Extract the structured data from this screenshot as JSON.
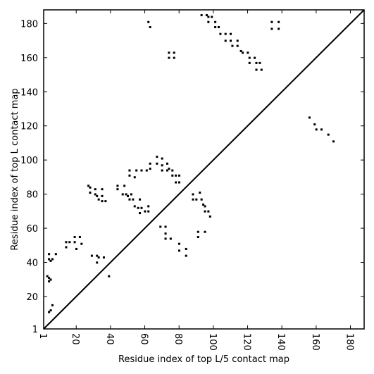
{
  "chart_data": {
    "type": "scatter",
    "title": "",
    "xlabel": "Residue index of top L/5 contact map",
    "ylabel": "Residue index of top L contact map",
    "xlim": [
      1,
      188
    ],
    "ylim": [
      1,
      188
    ],
    "xticks": [
      1,
      20,
      40,
      60,
      80,
      100,
      120,
      140,
      160,
      180
    ],
    "yticks": [
      1,
      20,
      40,
      60,
      80,
      100,
      120,
      140,
      160,
      180
    ],
    "grid": false,
    "diagonal": {
      "from": [
        1,
        1
      ],
      "to": [
        188,
        188
      ]
    },
    "marker_color": "#000000",
    "series": [
      {
        "values": [
          [
            4,
            45
          ],
          [
            4,
            42
          ],
          [
            5,
            41
          ],
          [
            6,
            42
          ],
          [
            8,
            45
          ],
          [
            3,
            32
          ],
          [
            4,
            31
          ],
          [
            4,
            29
          ],
          [
            5,
            30
          ],
          [
            6,
            15
          ],
          [
            5,
            12
          ],
          [
            4,
            11
          ],
          [
            14,
            52
          ],
          [
            16,
            52
          ],
          [
            14,
            49
          ],
          [
            19,
            55
          ],
          [
            19,
            52
          ],
          [
            20,
            48
          ],
          [
            22,
            55
          ],
          [
            23,
            51
          ],
          [
            27,
            85
          ],
          [
            28,
            84
          ],
          [
            28,
            81
          ],
          [
            31,
            83
          ],
          [
            31,
            80
          ],
          [
            32,
            79
          ],
          [
            33,
            77
          ],
          [
            35,
            83
          ],
          [
            35,
            79
          ],
          [
            35,
            76
          ],
          [
            37,
            76
          ],
          [
            29,
            44
          ],
          [
            32,
            44
          ],
          [
            33,
            43
          ],
          [
            32,
            40
          ],
          [
            36,
            43
          ],
          [
            39,
            32
          ],
          [
            44,
            85
          ],
          [
            44,
            83
          ],
          [
            48,
            85
          ],
          [
            49,
            80
          ],
          [
            47,
            80
          ],
          [
            50,
            79
          ],
          [
            51,
            77
          ],
          [
            53,
            77
          ],
          [
            52,
            80
          ],
          [
            54,
            73
          ],
          [
            57,
            77
          ],
          [
            56,
            72
          ],
          [
            58,
            72
          ],
          [
            57,
            69
          ],
          [
            60,
            70
          ],
          [
            62,
            70
          ],
          [
            62,
            73
          ],
          [
            51,
            94
          ],
          [
            51,
            91
          ],
          [
            54,
            90
          ],
          [
            55,
            94
          ],
          [
            58,
            94
          ],
          [
            61,
            94
          ],
          [
            63,
            98
          ],
          [
            63,
            95
          ],
          [
            67,
            102
          ],
          [
            67,
            98
          ],
          [
            70,
            101
          ],
          [
            70,
            97
          ],
          [
            70,
            94
          ],
          [
            73,
            98
          ],
          [
            73,
            94
          ],
          [
            74,
            95
          ],
          [
            76,
            94
          ],
          [
            76,
            91
          ],
          [
            78,
            91
          ],
          [
            78,
            87
          ],
          [
            80,
            91
          ],
          [
            80,
            87
          ],
          [
            69,
            61
          ],
          [
            72,
            61
          ],
          [
            72,
            57
          ],
          [
            72,
            54
          ],
          [
            75,
            54
          ],
          [
            80,
            51
          ],
          [
            80,
            47
          ],
          [
            84,
            48
          ],
          [
            84,
            44
          ],
          [
            88,
            80
          ],
          [
            90,
            77
          ],
          [
            88,
            77
          ],
          [
            92,
            81
          ],
          [
            93,
            77
          ],
          [
            94,
            74
          ],
          [
            95,
            73
          ],
          [
            95,
            70
          ],
          [
            97,
            70
          ],
          [
            98,
            67
          ],
          [
            91,
            58
          ],
          [
            91,
            55
          ],
          [
            95,
            58
          ],
          [
            62,
            181
          ],
          [
            63,
            178
          ],
          [
            74,
            163
          ],
          [
            74,
            160
          ],
          [
            77,
            163
          ],
          [
            77,
            160
          ],
          [
            93,
            185
          ],
          [
            96,
            185
          ],
          [
            97,
            184
          ],
          [
            97,
            181
          ],
          [
            99,
            184
          ],
          [
            101,
            181
          ],
          [
            101,
            178
          ],
          [
            103,
            178
          ],
          [
            104,
            174
          ],
          [
            107,
            174
          ],
          [
            107,
            170
          ],
          [
            110,
            174
          ],
          [
            110,
            170
          ],
          [
            111,
            167
          ],
          [
            114,
            170
          ],
          [
            114,
            167
          ],
          [
            116,
            164
          ],
          [
            117,
            163
          ],
          [
            120,
            163
          ],
          [
            121,
            160
          ],
          [
            121,
            157
          ],
          [
            124,
            160
          ],
          [
            125,
            157
          ],
          [
            127,
            157
          ],
          [
            128,
            153
          ],
          [
            125,
            153
          ],
          [
            134,
            181
          ],
          [
            134,
            177
          ],
          [
            138,
            181
          ],
          [
            138,
            177
          ],
          [
            156,
            125
          ],
          [
            159,
            121
          ],
          [
            160,
            118
          ],
          [
            163,
            118
          ],
          [
            167,
            115
          ],
          [
            170,
            111
          ]
        ]
      }
    ]
  }
}
